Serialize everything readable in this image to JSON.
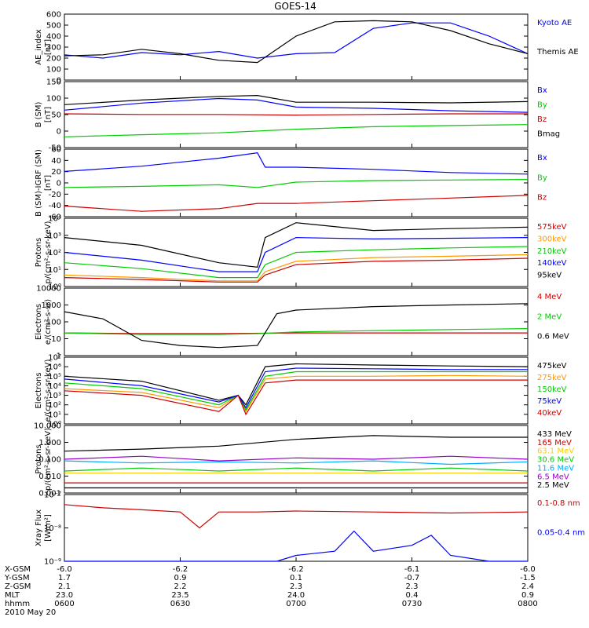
{
  "title": "GOES-14",
  "chart_data": [
    {
      "type": "line",
      "ylabel": [
        "AE_index",
        "[nT]"
      ],
      "yticks": [
        "600",
        "500",
        "400",
        "300",
        "200",
        "100",
        "0"
      ],
      "ylim": [
        0,
        600
      ],
      "series": [
        {
          "name": "Kyoto AE",
          "color": "#0000ff",
          "x": [
            0,
            10,
            20,
            30,
            40,
            50,
            60,
            70,
            80,
            90,
            100,
            110,
            120
          ],
          "y": [
            230,
            200,
            250,
            230,
            260,
            200,
            240,
            250,
            470,
            520,
            520,
            400,
            240
          ]
        },
        {
          "name": "Themis AE",
          "color": "#000000",
          "x": [
            0,
            10,
            20,
            30,
            40,
            50,
            60,
            70,
            80,
            90,
            100,
            110,
            120
          ],
          "y": [
            220,
            230,
            280,
            240,
            180,
            160,
            400,
            530,
            540,
            530,
            450,
            330,
            240
          ]
        }
      ]
    },
    {
      "type": "line",
      "ylabel": [
        "B (SM)",
        "[nT]"
      ],
      "yticks": [
        "150",
        "100",
        "50",
        "0",
        "-50"
      ],
      "ylim": [
        -60,
        155
      ],
      "series": [
        {
          "name": "Bx",
          "color": "#0000ff",
          "x": [
            0,
            20,
            40,
            50,
            60,
            80,
            100,
            120
          ],
          "y": [
            62,
            85,
            100,
            95,
            72,
            68,
            60,
            55
          ]
        },
        {
          "name": "By",
          "color": "#00cc00",
          "x": [
            0,
            20,
            40,
            60,
            80,
            100,
            120
          ],
          "y": [
            -25,
            -18,
            -12,
            0,
            8,
            12,
            15
          ]
        },
        {
          "name": "Bz",
          "color": "#cc0000",
          "x": [
            0,
            20,
            40,
            60,
            80,
            100,
            120
          ],
          "y": [
            50,
            48,
            48,
            46,
            48,
            50,
            50
          ]
        },
        {
          "name": "Bmag",
          "color": "#000000",
          "x": [
            0,
            20,
            40,
            50,
            60,
            80,
            100,
            120
          ],
          "y": [
            80,
            95,
            107,
            110,
            88,
            88,
            86,
            90
          ]
        }
      ]
    },
    {
      "type": "line",
      "ylabel": [
        "B (SM)-IGRF (SM)",
        "[nT]"
      ],
      "yticks": [
        "60",
        "40",
        "20",
        "0",
        "-20",
        "-40",
        "-60"
      ],
      "ylim": [
        -65,
        62
      ],
      "series": [
        {
          "name": "Bx",
          "color": "#0000ff",
          "x": [
            0,
            20,
            40,
            50,
            52,
            60,
            80,
            100,
            120
          ],
          "y": [
            20,
            30,
            45,
            55,
            28,
            28,
            24,
            18,
            15
          ]
        },
        {
          "name": "By",
          "color": "#00cc00",
          "x": [
            0,
            20,
            40,
            50,
            60,
            80,
            100,
            120
          ],
          "y": [
            -10,
            -8,
            -5,
            -10,
            0,
            3,
            4,
            5
          ]
        },
        {
          "name": "Bz",
          "color": "#cc0000",
          "x": [
            0,
            20,
            40,
            50,
            60,
            80,
            100,
            120
          ],
          "y": [
            -45,
            -55,
            -50,
            -40,
            -40,
            -35,
            -30,
            -25
          ]
        }
      ]
    },
    {
      "type": "line",
      "ylabel": [
        "Protons",
        "p/(cm²-s-sr-keV)"
      ],
      "yticks": [
        "10⁴",
        "10³",
        "10²",
        "10¹",
        "10⁰"
      ],
      "ylog": true,
      "ylim": [
        0.5,
        20000
      ],
      "series": [
        {
          "name": "575keV",
          "color": "#cc0000",
          "x": [
            0,
            20,
            40,
            50,
            52,
            60,
            80,
            100,
            120
          ],
          "y": [
            2,
            1.5,
            1,
            1,
            3,
            15,
            25,
            30,
            40
          ]
        },
        {
          "name": "300keV",
          "color": "#ff9900",
          "x": [
            0,
            20,
            40,
            50,
            52,
            60,
            80,
            100,
            120
          ],
          "y": [
            3,
            2,
            1.2,
            1.2,
            5,
            25,
            45,
            55,
            70
          ]
        },
        {
          "name": "210keV",
          "color": "#00cc00",
          "x": [
            0,
            20,
            40,
            50,
            52,
            60,
            80,
            100,
            120
          ],
          "y": [
            20,
            8,
            2,
            2,
            15,
            100,
            150,
            200,
            250
          ]
        },
        {
          "name": "140keV",
          "color": "#0000ff",
          "x": [
            0,
            20,
            40,
            50,
            52,
            60,
            80,
            100,
            120
          ],
          "y": [
            100,
            30,
            5,
            5,
            100,
            1000,
            800,
            900,
            1000
          ]
        },
        {
          "name": "95keV",
          "color": "#000000",
          "x": [
            0,
            20,
            40,
            50,
            52,
            60,
            80,
            100,
            120
          ],
          "y": [
            1000,
            300,
            20,
            10,
            1000,
            10000,
            3000,
            4000,
            5000
          ]
        }
      ]
    },
    {
      "type": "line",
      "ylabel": [
        "Electrons",
        "e/(cm²-s-sr)"
      ],
      "yticks": [
        "10000",
        "1000",
        "100",
        "10",
        "1"
      ],
      "ylog": true,
      "ylim": [
        1,
        10000
      ],
      "series": [
        {
          "name": "4 MeV",
          "color": "#cc0000",
          "x": [
            0,
            20,
            40,
            60,
            80,
            100,
            120
          ],
          "y": [
            22,
            20,
            20,
            22,
            22,
            22,
            22
          ]
        },
        {
          "name": "2 MeV",
          "color": "#00cc00",
          "x": [
            0,
            20,
            40,
            50,
            60,
            80,
            100,
            120
          ],
          "y": [
            22,
            18,
            18,
            20,
            25,
            30,
            35,
            40
          ]
        },
        {
          "name": "0.6 MeV",
          "color": "#000000",
          "x": [
            0,
            10,
            20,
            30,
            40,
            50,
            55,
            60,
            80,
            100,
            120
          ],
          "y": [
            400,
            150,
            8,
            4,
            3,
            4,
            300,
            500,
            800,
            1000,
            1200
          ]
        }
      ]
    },
    {
      "type": "line",
      "ylabel": [
        "Electrons",
        "e/(cm²-s-sr-keV)"
      ],
      "yticks": [
        "10⁷",
        "10⁶",
        "10⁵",
        "10⁴",
        "10³",
        "10²",
        "10¹",
        "10⁰"
      ],
      "ylog": true,
      "ylim": [
        1,
        10000000
      ],
      "series": [
        {
          "name": "475keV",
          "color": "#000000",
          "x": [
            0,
            20,
            40,
            45,
            47,
            52,
            60,
            80,
            100,
            120
          ],
          "y": [
            100000,
            30000,
            300,
            1000,
            100,
            1000000,
            2000000,
            1500000,
            1200000,
            1000000
          ]
        },
        {
          "name": "275keV",
          "color": "#ff9900",
          "x": [
            0,
            20,
            40,
            45,
            47,
            52,
            60,
            80,
            100,
            120
          ],
          "y": [
            5000,
            2000,
            50,
            1000,
            20,
            50000,
            100000,
            100000,
            120000,
            100000
          ]
        },
        {
          "name": "150keV",
          "color": "#00cc00",
          "x": [
            0,
            20,
            40,
            45,
            47,
            52,
            60,
            80,
            100,
            120
          ],
          "y": [
            20000,
            5000,
            100,
            1000,
            30,
            100000,
            300000,
            300000,
            300000,
            300000
          ]
        },
        {
          "name": "75keV",
          "color": "#0000ff",
          "x": [
            0,
            20,
            40,
            45,
            47,
            52,
            60,
            80,
            100,
            120
          ],
          "y": [
            50000,
            10000,
            200,
            1000,
            50,
            300000,
            700000,
            600000,
            500000,
            500000
          ]
        },
        {
          "name": "40keV",
          "color": "#cc0000",
          "x": [
            0,
            20,
            40,
            45,
            47,
            52,
            60,
            80,
            100,
            120
          ],
          "y": [
            3000,
            1000,
            20,
            1000,
            10,
            20000,
            40000,
            40000,
            40000,
            40000
          ]
        }
      ]
    },
    {
      "type": "line",
      "ylabel": [
        "Protons",
        "p/(cm²-s-sr-keV)"
      ],
      "yticks": [
        "10.000",
        "1.000",
        "0.100",
        "0.010",
        "0.001"
      ],
      "ylog": true,
      "ylim": [
        0.001,
        10
      ],
      "series": [
        {
          "name": "433 MeV",
          "color": "#000000",
          "x": [
            0,
            20,
            40,
            60,
            80,
            100,
            120
          ],
          "y": [
            0.3,
            0.4,
            0.6,
            1.5,
            2.5,
            2,
            2
          ]
        },
        {
          "name": "165 MeV",
          "color": "#cc0000",
          "x": [
            0,
            20,
            40,
            60,
            80,
            100,
            120
          ],
          "y": [
            0.004,
            0.004,
            0.004,
            0.004,
            0.004,
            0.004,
            0.004
          ]
        },
        {
          "name": "63.1 MeV",
          "color": "#ffcc00",
          "x": [
            0,
            20,
            40,
            60,
            80,
            100,
            120
          ],
          "y": [
            0.015,
            0.015,
            0.015,
            0.015,
            0.015,
            0.015,
            0.015
          ]
        },
        {
          "name": "30.6 MeV",
          "color": "#00cc00",
          "x": [
            0,
            20,
            40,
            60,
            80,
            100,
            120
          ],
          "y": [
            0.02,
            0.03,
            0.02,
            0.03,
            0.02,
            0.03,
            0.02
          ]
        },
        {
          "name": "11.6 MeV",
          "color": "#00aaff",
          "x": [
            0,
            20,
            40,
            60,
            80,
            100,
            120
          ],
          "y": [
            0.08,
            0.06,
            0.07,
            0.06,
            0.08,
            0.05,
            0.07
          ]
        },
        {
          "name": "6.5 MeV",
          "color": "#9900cc",
          "x": [
            0,
            20,
            40,
            60,
            80,
            100,
            120
          ],
          "y": [
            0.1,
            0.15,
            0.08,
            0.12,
            0.1,
            0.15,
            0.1
          ]
        },
        {
          "name": "2.5 MeV",
          "color": "#000000",
          "x": [
            0,
            20,
            40,
            60,
            80,
            100,
            120
          ],
          "y": [
            0.002,
            0.002,
            0.002,
            0.002,
            0.002,
            0.002,
            0.002
          ]
        }
      ]
    },
    {
      "type": "line",
      "ylabel": [
        "Xray Flux",
        "[W/m²]"
      ],
      "yticks": [
        "10⁻⁷",
        "10⁻⁸",
        "10⁻⁹"
      ],
      "ylog": true,
      "ylim": [
        1e-09,
        1e-07
      ],
      "series": [
        {
          "name": "0.1-0.8 nm",
          "color": "#cc0000",
          "x": [
            0,
            10,
            20,
            30,
            35,
            40,
            50,
            60,
            80,
            100,
            120
          ],
          "y": [
            5e-08,
            4e-08,
            3.5e-08,
            3e-08,
            1e-08,
            3e-08,
            3e-08,
            3.2e-08,
            3e-08,
            2.8e-08,
            3e-08
          ]
        },
        {
          "name": "0.05-0.4 nm",
          "color": "#0000ff",
          "x": [
            0,
            50,
            55,
            60,
            70,
            75,
            80,
            90,
            95,
            100,
            110,
            120
          ],
          "y": [
            1e-09,
            1e-09,
            1e-09,
            1.5e-09,
            2e-09,
            8e-09,
            2e-09,
            3e-09,
            6e-09,
            1.5e-09,
            1e-09,
            1e-09
          ]
        }
      ]
    }
  ],
  "footer": {
    "rows": [
      {
        "label": "X-GSM",
        "values": [
          "-6.0",
          "-6.2",
          "-6.2",
          "-6.1",
          "-6.0"
        ]
      },
      {
        "label": "Y-GSM",
        "values": [
          "1.7",
          "0.9",
          "0.1",
          "-0.7",
          "-1.5"
        ]
      },
      {
        "label": "Z-GSM",
        "values": [
          "2.1",
          "2.2",
          "2.3",
          "2.3",
          "2.4"
        ]
      },
      {
        "label": "MLT",
        "values": [
          "23.0",
          "23.5",
          "24.0",
          "0.4",
          "0.9"
        ]
      },
      {
        "label": "hhmm",
        "values": [
          "0600",
          "0630",
          "0700",
          "0730",
          "0800"
        ]
      }
    ],
    "date": "2010 May 20"
  }
}
